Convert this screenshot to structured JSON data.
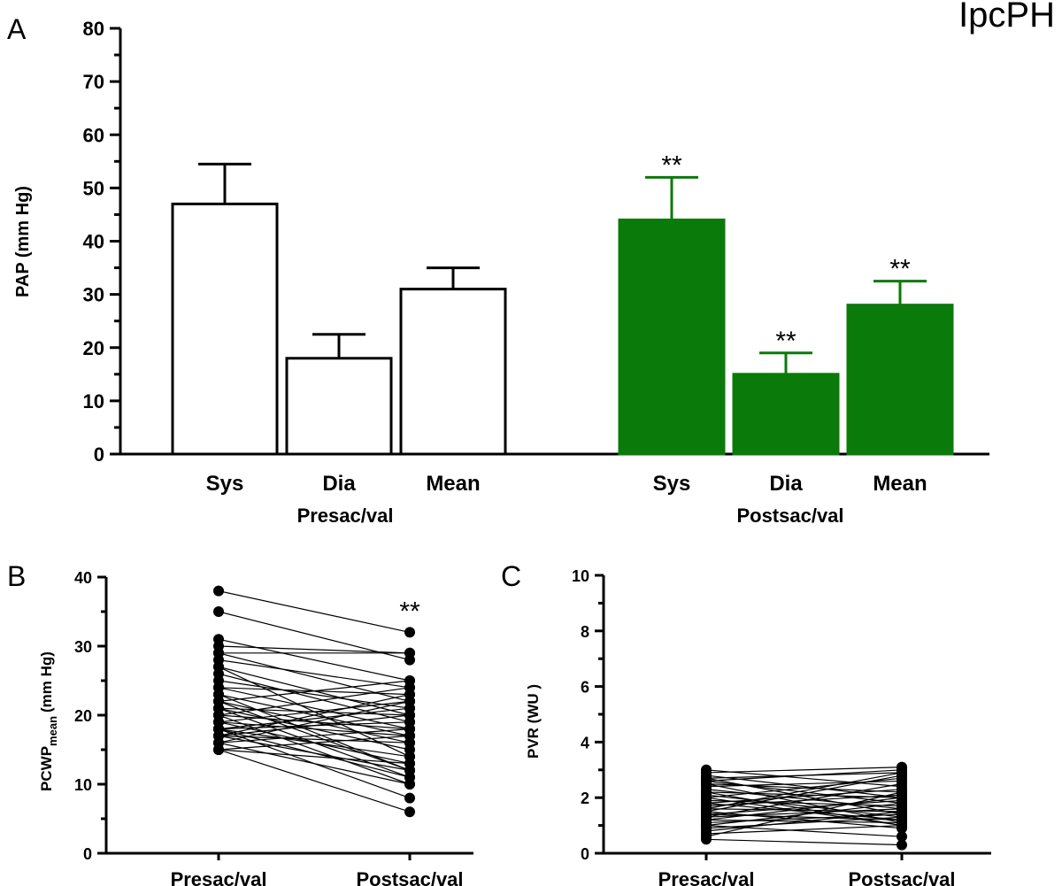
{
  "figure_title": "IpcPH",
  "colors": {
    "pre": "#ffffff",
    "post": "#0a7a0a",
    "ink": "#000000"
  },
  "chart_data": [
    {
      "panel": "A",
      "type": "bar",
      "ylabel": "PAP (mm Hg)",
      "ylim": [
        0,
        80
      ],
      "yticks": [
        0,
        10,
        20,
        30,
        40,
        50,
        60,
        70,
        80
      ],
      "groups": [
        {
          "label": "Presac/val",
          "bars": [
            {
              "category": "Sys",
              "value": 47,
              "error": 7.5,
              "sig": ""
            },
            {
              "category": "Dia",
              "value": 18,
              "error": 4.5,
              "sig": ""
            },
            {
              "category": "Mean",
              "value": 31,
              "error": 4,
              "sig": ""
            }
          ]
        },
        {
          "label": "Postsac/val",
          "bars": [
            {
              "category": "Sys",
              "value": 44,
              "error": 8,
              "sig": "**"
            },
            {
              "category": "Dia",
              "value": 15,
              "error": 4,
              "sig": "**"
            },
            {
              "category": "Mean",
              "value": 28,
              "error": 4.5,
              "sig": "**"
            }
          ]
        }
      ]
    },
    {
      "panel": "B",
      "type": "paired-scatter",
      "ylabel_main": "PCWP",
      "ylabel_sub": "mean",
      "ylabel_unit": "(mm Hg)",
      "ylim": [
        0,
        40
      ],
      "yticks": [
        0,
        10,
        20,
        30,
        40
      ],
      "categories": [
        "Presac/val",
        "Postsac/val"
      ],
      "sig": "**",
      "pairs": [
        [
          38,
          32
        ],
        [
          35,
          28
        ],
        [
          31,
          25
        ],
        [
          30,
          29
        ],
        [
          29,
          22
        ],
        [
          29,
          29
        ],
        [
          28,
          24
        ],
        [
          27,
          20
        ],
        [
          26,
          19
        ],
        [
          25,
          21
        ],
        [
          24,
          23
        ],
        [
          24,
          18
        ],
        [
          23,
          17
        ],
        [
          22,
          25
        ],
        [
          22,
          16
        ],
        [
          22,
          12
        ],
        [
          21,
          20
        ],
        [
          21,
          15
        ],
        [
          21,
          11
        ],
        [
          20,
          24
        ],
        [
          20,
          18
        ],
        [
          20,
          10
        ],
        [
          19,
          22
        ],
        [
          19,
          17
        ],
        [
          19,
          13
        ],
        [
          18,
          21
        ],
        [
          18,
          19
        ],
        [
          18,
          14
        ],
        [
          18,
          8
        ],
        [
          18,
          11
        ],
        [
          17,
          20
        ],
        [
          17,
          16
        ],
        [
          17,
          12
        ],
        [
          17,
          23
        ],
        [
          16,
          22
        ],
        [
          16,
          18
        ],
        [
          16,
          10
        ],
        [
          15,
          17
        ],
        [
          15,
          13
        ],
        [
          15,
          6
        ],
        [
          27,
          14
        ],
        [
          23,
          12
        ]
      ]
    },
    {
      "panel": "C",
      "type": "paired-scatter",
      "ylabel": "PVR (WU )",
      "ylim": [
        0,
        10
      ],
      "yticks": [
        0,
        2,
        4,
        6,
        8,
        10
      ],
      "categories": [
        "Presac/val",
        "Postsac/val"
      ],
      "sig": "",
      "pairs": [
        [
          3.0,
          2.4
        ],
        [
          2.9,
          3.1
        ],
        [
          2.8,
          2.0
        ],
        [
          2.7,
          1.4
        ],
        [
          2.7,
          2.9
        ],
        [
          2.6,
          1.8
        ],
        [
          2.6,
          3.0
        ],
        [
          2.5,
          2.2
        ],
        [
          2.5,
          1.1
        ],
        [
          2.4,
          2.6
        ],
        [
          2.3,
          1.6
        ],
        [
          2.2,
          2.0
        ],
        [
          2.1,
          1.3
        ],
        [
          2.0,
          2.7
        ],
        [
          2.0,
          1.0
        ],
        [
          1.9,
          1.7
        ],
        [
          1.8,
          2.3
        ],
        [
          1.8,
          1.2
        ],
        [
          1.7,
          2.1
        ],
        [
          1.6,
          1.5
        ],
        [
          1.5,
          2.8
        ],
        [
          1.5,
          0.9
        ],
        [
          1.4,
          1.9
        ],
        [
          1.4,
          1.2
        ],
        [
          1.3,
          2.5
        ],
        [
          1.3,
          1.6
        ],
        [
          1.2,
          1.1
        ],
        [
          1.2,
          2.0
        ],
        [
          1.1,
          1.4
        ],
        [
          1.0,
          1.8
        ],
        [
          1.0,
          0.6
        ],
        [
          0.9,
          1.3
        ],
        [
          0.8,
          1.5
        ],
        [
          0.7,
          1.0
        ],
        [
          0.6,
          2.2
        ],
        [
          0.5,
          0.3
        ],
        [
          1.6,
          2.9
        ],
        [
          2.2,
          1.0
        ]
      ]
    }
  ]
}
